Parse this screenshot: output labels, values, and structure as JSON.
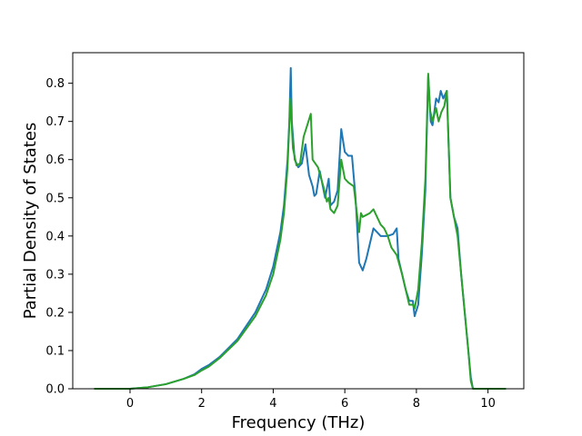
{
  "chart_data": {
    "type": "line",
    "title": "",
    "xlabel": "Frequency (THz)",
    "ylabel": "Partial Density of States",
    "xlim": [
      -1.6,
      11.0
    ],
    "ylim": [
      0.0,
      0.88
    ],
    "xticks": [
      0,
      2,
      4,
      6,
      8,
      10
    ],
    "yticks": [
      0.0,
      0.1,
      0.2,
      0.3,
      0.4,
      0.5,
      0.6,
      0.7,
      0.8
    ],
    "xtick_labels": [
      "0",
      "2",
      "4",
      "6",
      "8",
      "10"
    ],
    "ytick_labels": [
      "0.0",
      "0.1",
      "0.2",
      "0.3",
      "0.4",
      "0.5",
      "0.6",
      "0.7",
      "0.8"
    ],
    "grid": false,
    "legend": false,
    "series": [
      {
        "color": "#1f77b4",
        "points": [
          [
            -1.0,
            0.0
          ],
          [
            0.0,
            0.0
          ],
          [
            0.5,
            0.004
          ],
          [
            1.0,
            0.012
          ],
          [
            1.5,
            0.026
          ],
          [
            1.8,
            0.038
          ],
          [
            2.0,
            0.052
          ],
          [
            2.2,
            0.062
          ],
          [
            2.5,
            0.083
          ],
          [
            3.0,
            0.13
          ],
          [
            3.5,
            0.2
          ],
          [
            3.8,
            0.26
          ],
          [
            4.0,
            0.32
          ],
          [
            4.2,
            0.41
          ],
          [
            4.3,
            0.48
          ],
          [
            4.4,
            0.6
          ],
          [
            4.45,
            0.7
          ],
          [
            4.49,
            0.84
          ],
          [
            4.52,
            0.7
          ],
          [
            4.6,
            0.6
          ],
          [
            4.7,
            0.58
          ],
          [
            4.8,
            0.59
          ],
          [
            4.9,
            0.64
          ],
          [
            5.0,
            0.56
          ],
          [
            5.1,
            0.53
          ],
          [
            5.15,
            0.505
          ],
          [
            5.2,
            0.51
          ],
          [
            5.3,
            0.57
          ],
          [
            5.45,
            0.5
          ],
          [
            5.55,
            0.55
          ],
          [
            5.6,
            0.48
          ],
          [
            5.7,
            0.49
          ],
          [
            5.8,
            0.52
          ],
          [
            5.9,
            0.68
          ],
          [
            6.0,
            0.62
          ],
          [
            6.1,
            0.61
          ],
          [
            6.2,
            0.61
          ],
          [
            6.3,
            0.5
          ],
          [
            6.4,
            0.33
          ],
          [
            6.5,
            0.31
          ],
          [
            6.6,
            0.34
          ],
          [
            6.7,
            0.38
          ],
          [
            6.8,
            0.42
          ],
          [
            6.9,
            0.41
          ],
          [
            7.0,
            0.4
          ],
          [
            7.2,
            0.4
          ],
          [
            7.35,
            0.405
          ],
          [
            7.45,
            0.42
          ],
          [
            7.5,
            0.34
          ],
          [
            7.6,
            0.3
          ],
          [
            7.7,
            0.26
          ],
          [
            7.8,
            0.23
          ],
          [
            7.9,
            0.23
          ],
          [
            7.95,
            0.19
          ],
          [
            8.05,
            0.22
          ],
          [
            8.15,
            0.35
          ],
          [
            8.25,
            0.52
          ],
          [
            8.33,
            0.82
          ],
          [
            8.4,
            0.7
          ],
          [
            8.45,
            0.69
          ],
          [
            8.55,
            0.76
          ],
          [
            8.62,
            0.75
          ],
          [
            8.68,
            0.78
          ],
          [
            8.75,
            0.76
          ],
          [
            8.85,
            0.78
          ],
          [
            8.95,
            0.5
          ],
          [
            9.05,
            0.45
          ],
          [
            9.15,
            0.42
          ],
          [
            9.25,
            0.3
          ],
          [
            9.35,
            0.2
          ],
          [
            9.45,
            0.1
          ],
          [
            9.52,
            0.03
          ],
          [
            9.58,
            0.0
          ],
          [
            10.0,
            0.0
          ],
          [
            10.5,
            0.0
          ]
        ]
      },
      {
        "color": "#2ca02c",
        "points": [
          [
            -1.0,
            0.0
          ],
          [
            0.0,
            0.0
          ],
          [
            0.5,
            0.004
          ],
          [
            1.0,
            0.012
          ],
          [
            1.5,
            0.026
          ],
          [
            1.8,
            0.036
          ],
          [
            2.0,
            0.048
          ],
          [
            2.2,
            0.058
          ],
          [
            2.5,
            0.08
          ],
          [
            3.0,
            0.125
          ],
          [
            3.5,
            0.19
          ],
          [
            3.8,
            0.245
          ],
          [
            4.0,
            0.3
          ],
          [
            4.2,
            0.39
          ],
          [
            4.3,
            0.46
          ],
          [
            4.4,
            0.58
          ],
          [
            4.48,
            0.76
          ],
          [
            4.55,
            0.63
          ],
          [
            4.65,
            0.585
          ],
          [
            4.75,
            0.59
          ],
          [
            4.85,
            0.66
          ],
          [
            4.95,
            0.69
          ],
          [
            5.05,
            0.72
          ],
          [
            5.1,
            0.6
          ],
          [
            5.25,
            0.58
          ],
          [
            5.4,
            0.53
          ],
          [
            5.5,
            0.49
          ],
          [
            5.55,
            0.5
          ],
          [
            5.6,
            0.47
          ],
          [
            5.7,
            0.46
          ],
          [
            5.8,
            0.48
          ],
          [
            5.9,
            0.6
          ],
          [
            6.0,
            0.55
          ],
          [
            6.1,
            0.54
          ],
          [
            6.25,
            0.53
          ],
          [
            6.35,
            0.45
          ],
          [
            6.4,
            0.41
          ],
          [
            6.45,
            0.46
          ],
          [
            6.5,
            0.45
          ],
          [
            6.6,
            0.455
          ],
          [
            6.7,
            0.46
          ],
          [
            6.8,
            0.47
          ],
          [
            6.9,
            0.45
          ],
          [
            7.0,
            0.43
          ],
          [
            7.1,
            0.42
          ],
          [
            7.2,
            0.4
          ],
          [
            7.3,
            0.37
          ],
          [
            7.45,
            0.35
          ],
          [
            7.6,
            0.3
          ],
          [
            7.7,
            0.26
          ],
          [
            7.8,
            0.22
          ],
          [
            7.9,
            0.22
          ],
          [
            7.95,
            0.21
          ],
          [
            8.05,
            0.26
          ],
          [
            8.15,
            0.38
          ],
          [
            8.25,
            0.55
          ],
          [
            8.33,
            0.825
          ],
          [
            8.38,
            0.73
          ],
          [
            8.45,
            0.7
          ],
          [
            8.55,
            0.735
          ],
          [
            8.62,
            0.7
          ],
          [
            8.7,
            0.725
          ],
          [
            8.78,
            0.74
          ],
          [
            8.85,
            0.78
          ],
          [
            8.95,
            0.5
          ],
          [
            9.05,
            0.45
          ],
          [
            9.15,
            0.4
          ],
          [
            9.25,
            0.3
          ],
          [
            9.35,
            0.2
          ],
          [
            9.45,
            0.1
          ],
          [
            9.52,
            0.02
          ],
          [
            9.58,
            0.0
          ],
          [
            10.0,
            0.0
          ],
          [
            10.5,
            0.0
          ]
        ]
      }
    ]
  }
}
